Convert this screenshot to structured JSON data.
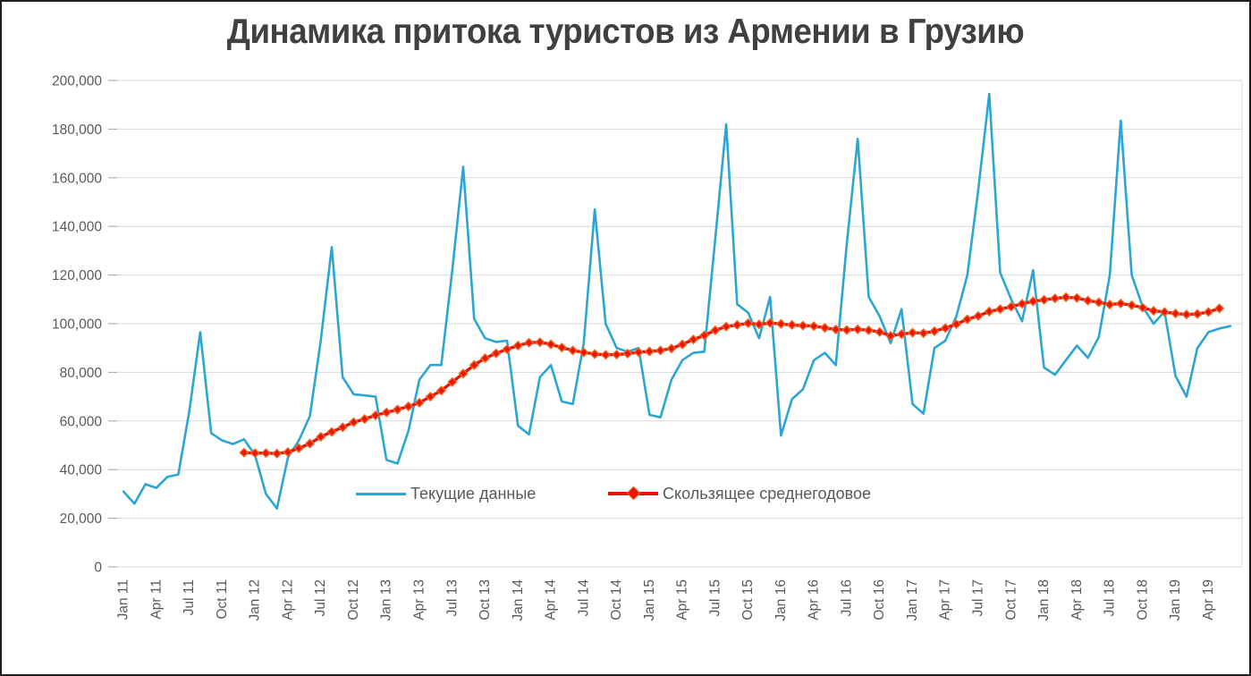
{
  "title": "Динамика притока туристов из Армении в Грузию",
  "chart_data": {
    "type": "line",
    "title": "Динамика притока туристов из Армении в Грузию",
    "x_interval": "monthly",
    "x_start": "Jan 2011",
    "x_end": "Jun 2019",
    "x_label_rotation": 90,
    "grid": "horizontal",
    "legend_position": "inside-bottom",
    "ylim": [
      0,
      200000
    ],
    "y_tick_step": 20000,
    "y_tick_labels": [
      "0",
      "20,000",
      "40,000",
      "60,000",
      "80,000",
      "100,000",
      "120,000",
      "140,000",
      "160,000",
      "180,000",
      "200,000"
    ],
    "x_tick_every_n_months": 3,
    "x_tick_labels": [
      "Jan 11",
      "Apr 11",
      "Jul 11",
      "Oct 11",
      "Jan 12",
      "Apr 12",
      "Jul 12",
      "Oct 12",
      "Jan 13",
      "Apr 13",
      "Jul 13",
      "Oct 13",
      "Jan 14",
      "Apr 14",
      "Jul 14",
      "Oct 14",
      "Jan 15",
      "Apr 15",
      "Jul 15",
      "Oct 15",
      "Jan 16",
      "Apr 16",
      "Jul 16",
      "Oct 16",
      "Jan 17",
      "Apr 17",
      "Jul 17",
      "Oct 17",
      "Jan 18",
      "Apr 18",
      "Jul 18",
      "Oct 18",
      "Jan 19",
      "Apr 19"
    ],
    "colors": {
      "current_series": "#2ba5d4",
      "moving_avg_line": "#e8150a",
      "moving_avg_marker_fill": "#e8150a",
      "moving_avg_marker_edge": "#f4641d",
      "gridline": "#d9d9d9",
      "axis_tick": "#a6a6a6",
      "axis_label": "#595959",
      "title_text": "#404040"
    },
    "series": [
      {
        "name": "Текущие данные",
        "type": "line",
        "start_month_index": 0,
        "values": [
          31000,
          26000,
          34000,
          32500,
          37000,
          38000,
          64000,
          96500,
          55000,
          52000,
          50500,
          52500,
          46000,
          30000,
          24000,
          45000,
          52000,
          62000,
          93000,
          131500,
          78000,
          71000,
          70500,
          70000,
          44000,
          42500,
          56000,
          77000,
          83000,
          83000,
          122000,
          164500,
          102000,
          94000,
          92500,
          93000,
          58000,
          54500,
          78000,
          83000,
          68000,
          67000,
          92000,
          147000,
          100000,
          90000,
          88500,
          90000,
          62500,
          61500,
          77000,
          85000,
          88000,
          88500,
          135000,
          182000,
          108000,
          104500,
          94000,
          111000,
          54000,
          69000,
          73000,
          85000,
          88000,
          83000,
          133000,
          176000,
          111000,
          103000,
          92000,
          106000,
          67000,
          63000,
          90000,
          93000,
          103000,
          120000,
          155000,
          194500,
          121000,
          110000,
          101000,
          122000,
          82000,
          79000,
          85000,
          91000,
          86000,
          94500,
          120000,
          183500,
          120000,
          107000,
          100000,
          105000,
          78500,
          70000,
          90000,
          96500,
          98000,
          99000
        ]
      },
      {
        "name": "Скользящее среднегодовое",
        "type": "line-diamond",
        "start_month_index": 11,
        "values": [
          47000,
          46800,
          46800,
          46600,
          47200,
          48800,
          50700,
          53500,
          55500,
          57400,
          59500,
          60800,
          62300,
          63500,
          64700,
          66000,
          67500,
          70000,
          72500,
          76000,
          79500,
          83000,
          85800,
          87800,
          89500,
          91000,
          92200,
          92400,
          91500,
          90200,
          89000,
          88200,
          87500,
          87200,
          87300,
          87700,
          88300,
          88600,
          89000,
          89800,
          91500,
          93500,
          95200,
          97300,
          98800,
          99500,
          100200,
          99700,
          100300,
          99900,
          99500,
          99200,
          99000,
          98300,
          97600,
          97400,
          97700,
          97300,
          96600,
          95000,
          95700,
          96300,
          96100,
          96900,
          98200,
          99800,
          101800,
          103200,
          105000,
          106000,
          107000,
          108200,
          109200,
          109800,
          110400,
          110900,
          110600,
          109500,
          108800,
          107900,
          108300,
          107600,
          106600,
          105300,
          104800,
          104200,
          103800,
          104000,
          104800,
          106300
        ]
      }
    ]
  }
}
